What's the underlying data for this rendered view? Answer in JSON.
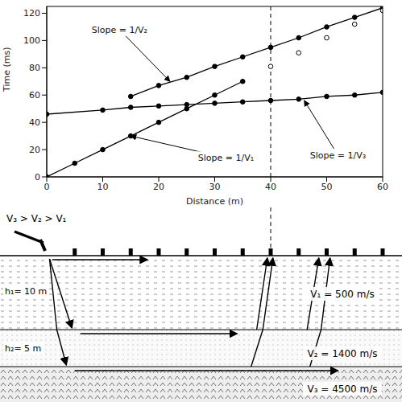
{
  "chart_data": {
    "type": "scatter",
    "x_label": "Distance (m)",
    "y_label": "Time (ms)",
    "xlim": [
      0,
      60
    ],
    "xticks": [
      0,
      10,
      20,
      30,
      40,
      50,
      60
    ],
    "ylim": [
      0,
      125
    ],
    "yticks": [
      0,
      20,
      40,
      60,
      80,
      100,
      120
    ],
    "grid": false,
    "series": [
      {
        "color": "#000000",
        "type": "line",
        "marker": "circle",
        "x": [
          0,
          5,
          10,
          15,
          20,
          25,
          30,
          35
        ],
        "values": [
          0,
          10,
          20,
          30,
          40,
          50,
          60,
          70
        ]
      },
      {
        "color": "#000000",
        "type": "line",
        "marker": "circle",
        "x": [
          15,
          20,
          25,
          30,
          35,
          40,
          45,
          50,
          55,
          60
        ],
        "values": [
          59,
          67,
          73,
          81,
          88,
          95,
          102,
          110,
          117,
          124
        ]
      },
      {
        "color": "#000000",
        "type": "line",
        "marker": "circle",
        "x": [
          0,
          10,
          15,
          20,
          25,
          30,
          35,
          40,
          45,
          50,
          55,
          60
        ],
        "values": [
          46,
          49,
          51,
          52,
          53,
          54,
          55,
          56,
          57,
          59,
          60,
          62
        ]
      },
      {
        "color": "#000000",
        "type": "scatter",
        "marker": "open_circle",
        "x": [
          40,
          45,
          50,
          55,
          60
        ],
        "values": [
          81,
          91,
          102,
          112,
          122
        ]
      }
    ],
    "annotations": [
      {
        "text": "Slope = 1/V₂",
        "x": 13,
        "y": 108,
        "arrow_to": [
          22,
          70
        ]
      },
      {
        "text": "Slope = 1/V₁",
        "x": 32,
        "y": 14,
        "arrow_to": [
          15,
          30
        ]
      },
      {
        "text": "Slope = 1/V₃",
        "x": 52,
        "y": 16,
        "arrow_to": [
          46,
          56
        ]
      }
    ],
    "reference_lines": [
      {
        "x": 40,
        "line_style": "dashed"
      }
    ]
  },
  "diagram": {
    "inequality": "V₃ > V₂ > V₁",
    "layers": [
      {
        "thickness": "h₁= 10 m",
        "velocity": "V₁ = 500 m/s"
      },
      {
        "thickness": "h₂= 5 m",
        "velocity": "V₂ = 1400 m/s"
      },
      {
        "velocity": "V₃ = 4500 m/s"
      }
    ],
    "geophone_x": [
      5,
      10,
      15,
      20,
      25,
      30,
      35,
      40,
      45,
      50,
      55,
      60
    ]
  }
}
